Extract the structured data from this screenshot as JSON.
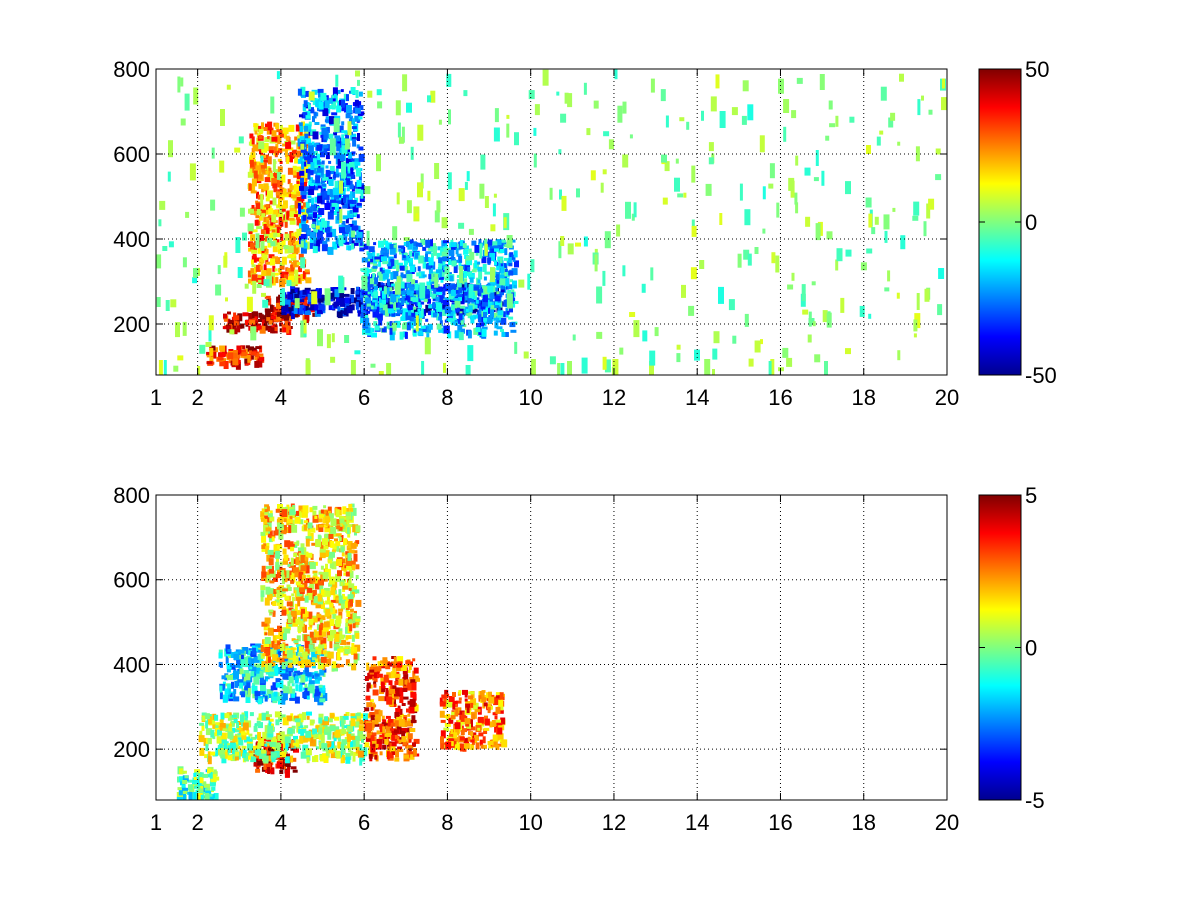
{
  "chart_data": [
    {
      "type": "heatmap",
      "title": "",
      "xlabel": "",
      "ylabel": "",
      "xlim": [
        1,
        20
      ],
      "ylim": [
        80,
        800
      ],
      "xticks": [
        1,
        2,
        4,
        6,
        8,
        10,
        12,
        14,
        16,
        18,
        20
      ],
      "xtick_labels": [
        "1",
        "2",
        "4",
        "6",
        "8",
        "10",
        "12",
        "14",
        "16",
        "18",
        "20"
      ],
      "yticks": [
        200,
        400,
        600,
        800
      ],
      "ytick_labels": [
        "200",
        "400",
        "600",
        "800"
      ],
      "grid": true,
      "colormap": "jet",
      "colorbar": {
        "min": -50,
        "max": 50,
        "tick_labels": [
          "50",
          "0",
          "-50"
        ]
      },
      "features": [
        {
          "x": [
            2.2,
            3.5
          ],
          "y": [
            110,
            150
          ],
          "value": 35
        },
        {
          "x": [
            2.6,
            4.2
          ],
          "y": [
            190,
            230
          ],
          "value": 40
        },
        {
          "x": [
            3.6,
            4.8
          ],
          "y": [
            220,
            270
          ],
          "value": 42
        },
        {
          "x": [
            4.0,
            6.0
          ],
          "y": [
            230,
            290
          ],
          "value": -40
        },
        {
          "x": [
            6.0,
            9.4
          ],
          "y": [
            230,
            300
          ],
          "value": -35
        },
        {
          "x": [
            3.2,
            4.6
          ],
          "y": [
            300,
            680
          ],
          "value": 22
        },
        {
          "x": [
            4.4,
            5.9
          ],
          "y": [
            380,
            760
          ],
          "value": -25
        },
        {
          "x": [
            5.9,
            9.6
          ],
          "y": [
            180,
            400
          ],
          "value": -18
        },
        {
          "x": [
            1.0,
            20.0
          ],
          "y": [
            80,
            800
          ],
          "value": 0
        }
      ]
    },
    {
      "type": "heatmap",
      "title": "",
      "xlabel": "",
      "ylabel": "",
      "xlim": [
        1,
        20
      ],
      "ylim": [
        80,
        800
      ],
      "xticks": [
        1,
        2,
        4,
        6,
        8,
        10,
        12,
        14,
        16,
        18,
        20
      ],
      "xtick_labels": [
        "1",
        "2",
        "4",
        "6",
        "8",
        "10",
        "12",
        "14",
        "16",
        "18",
        "20"
      ],
      "yticks": [
        200,
        400,
        600,
        800
      ],
      "ytick_labels": [
        "200",
        "400",
        "600",
        "800"
      ],
      "grid": true,
      "colormap": "jet",
      "colorbar": {
        "min": -5,
        "max": 5,
        "tick_labels": [
          "5",
          "0",
          "-5"
        ]
      },
      "features": [
        {
          "x": [
            3.3,
            4.3
          ],
          "y": [
            150,
            230
          ],
          "value": 4
        },
        {
          "x": [
            2.0,
            6.0
          ],
          "y": [
            180,
            290
          ],
          "value": 0.5
        },
        {
          "x": [
            6.0,
            7.2
          ],
          "y": [
            180,
            420
          ],
          "value": 3
        },
        {
          "x": [
            7.8,
            9.3
          ],
          "y": [
            210,
            340
          ],
          "value": 2.5
        },
        {
          "x": [
            2.5,
            5.0
          ],
          "y": [
            320,
            450
          ],
          "value": -1.5
        },
        {
          "x": [
            3.5,
            5.8
          ],
          "y": [
            400,
            780
          ],
          "value": 1.5
        },
        {
          "x": [
            1.5,
            2.4
          ],
          "y": [
            80,
            160
          ],
          "value": -0.5
        }
      ]
    }
  ]
}
